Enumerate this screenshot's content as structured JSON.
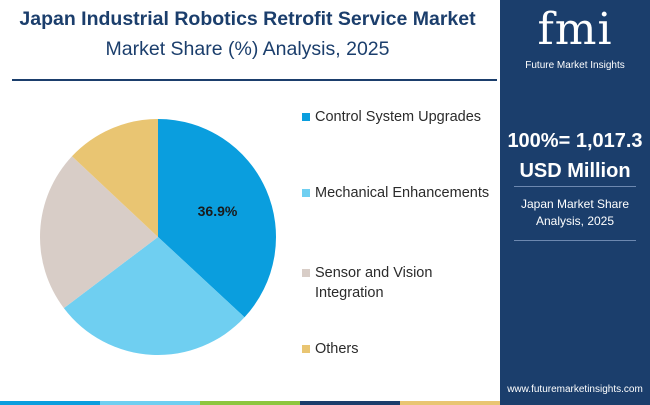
{
  "header": {
    "title": "Japan Industrial Robotics Retrofit Service Market",
    "subtitle": "Market Share (%) Analysis, 2025"
  },
  "chart_data": {
    "type": "pie",
    "categories": [
      "Control System Upgrades",
      "Mechanical Enhancements",
      "Sensor and Vision Integration",
      "Others"
    ],
    "values": [
      36.9,
      27.8,
      22.3,
      13.0
    ],
    "data_labels": [
      "36.9%",
      "",
      "",
      ""
    ],
    "colors": [
      "#0a9ede",
      "#6fcff1",
      "#d8cdc7",
      "#e9c572"
    ],
    "legend_position": "right"
  },
  "sidebar": {
    "logo_text": "fmi",
    "logo_subtext": "Future Market Insights",
    "total_line1": "100%= 1,017.3",
    "total_line2": "USD Million",
    "note_line1": "Japan Market Share",
    "note_line2": "Analysis, 2025",
    "url": "www.futuremarketinsights.com"
  },
  "bottom_bar_colors": [
    "#0a9ede",
    "#6fcff1",
    "#8dc63f",
    "#1b3e6c",
    "#e9c572"
  ]
}
